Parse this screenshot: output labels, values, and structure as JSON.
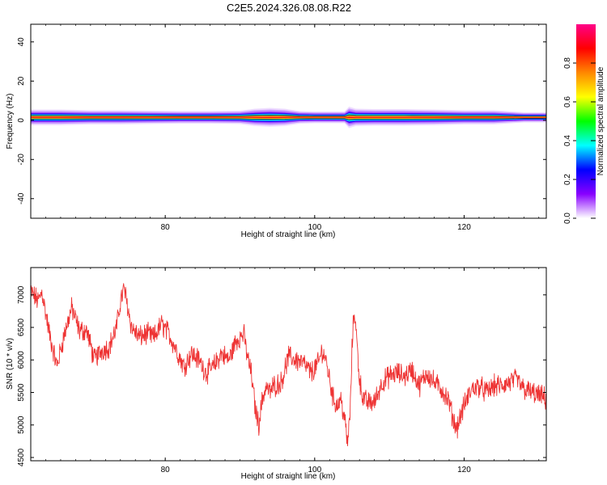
{
  "figure": {
    "title": "C2E5.2024.326.08.08.R22"
  },
  "chart_data": [
    {
      "type": "heatmap",
      "xlabel": "Height of straight line (km)",
      "ylabel": "Frequency (Hz)",
      "xlim": [
        62,
        131
      ],
      "ylim": [
        -50,
        49
      ],
      "x_ticks": [
        80,
        100,
        120
      ],
      "y_ticks": [
        -40,
        -20,
        0,
        20,
        40
      ],
      "colorbar": {
        "label": "Normalized spectral amplitude",
        "range": [
          0,
          1
        ],
        "ticks": [
          "0.0",
          "0.2",
          "0.4",
          "0.6",
          "0.8"
        ],
        "tick_values": [
          0.0,
          0.2,
          0.4,
          0.6,
          0.8
        ],
        "colors": [
          "#ffffff",
          "#8800ff",
          "#0000ff",
          "#00ffff",
          "#00ff00",
          "#ffff00",
          "#ff8800",
          "#ff0000",
          "#ff0088"
        ]
      },
      "band": {
        "center_freq": 1.5,
        "heights": [
          62,
          66,
          70,
          74,
          78,
          82,
          86,
          90,
          92,
          94,
          96,
          98,
          100,
          102,
          104,
          104.6,
          105.5,
          108,
          112,
          116,
          120,
          124,
          128,
          131
        ],
        "half_width_hz": [
          4,
          4,
          3.6,
          3.6,
          3.4,
          3.2,
          3.2,
          3.4,
          4.4,
          4.8,
          4.4,
          3.2,
          3,
          3,
          3,
          5.5,
          4.4,
          4.2,
          4.2,
          4,
          3.6,
          3.6,
          2.6,
          2.6
        ]
      }
    },
    {
      "type": "line",
      "xlabel": "Height of straight line (km)",
      "ylabel": "SNR (10 * v/v)",
      "xlim": [
        62,
        131
      ],
      "ylim": [
        4450,
        7420
      ],
      "x_ticks": [
        80,
        100,
        120
      ],
      "y_ticks": [
        4500,
        5000,
        5500,
        6000,
        6500,
        7000
      ],
      "series": [
        {
          "color": "#ee3333",
          "x": [
            62,
            63,
            63.5,
            64.5,
            65.5,
            66.5,
            67.5,
            68.5,
            69.5,
            70.5,
            71.5,
            72.5,
            73.5,
            74,
            74.5,
            75.5,
            76.5,
            77.5,
            78.5,
            79.5,
            80.5,
            81.5,
            82.5,
            83.5,
            84.5,
            85.5,
            86.5,
            87.5,
            88.5,
            89.5,
            90.5,
            91,
            91.5,
            92,
            92.5,
            93,
            93.5,
            94,
            94.5,
            95.5,
            96.5,
            97.5,
            98.5,
            99.5,
            100.5,
            101,
            101.5,
            102,
            102.5,
            103,
            103.5,
            104,
            104.4,
            104.8,
            105,
            105.3,
            105.6,
            106,
            106.5,
            107,
            108,
            109,
            110,
            111,
            112,
            113,
            114,
            115,
            116,
            117,
            118,
            118.5,
            119,
            120,
            121,
            122,
            123,
            124,
            125,
            126,
            127,
            128,
            129,
            130,
            131
          ],
          "y": [
            7050,
            6900,
            7050,
            6400,
            5900,
            6400,
            6800,
            6450,
            6450,
            6000,
            6150,
            6200,
            6500,
            6900,
            7100,
            6500,
            6350,
            6400,
            6350,
            6550,
            6400,
            6150,
            5900,
            6100,
            6000,
            5800,
            5900,
            6100,
            6000,
            6300,
            6400,
            6050,
            5800,
            5300,
            5000,
            5400,
            5600,
            5500,
            5600,
            5650,
            6050,
            6000,
            5950,
            5800,
            5950,
            6150,
            6000,
            5700,
            5400,
            5300,
            5400,
            5100,
            4700,
            5300,
            6200,
            6800,
            6350,
            5700,
            5400,
            5350,
            5350,
            5650,
            5750,
            5800,
            5750,
            5850,
            5600,
            5800,
            5650,
            5550,
            5350,
            5100,
            4950,
            5300,
            5550,
            5600,
            5500,
            5600,
            5600,
            5650,
            5700,
            5550,
            5500,
            5450,
            5400
          ]
        }
      ]
    }
  ]
}
